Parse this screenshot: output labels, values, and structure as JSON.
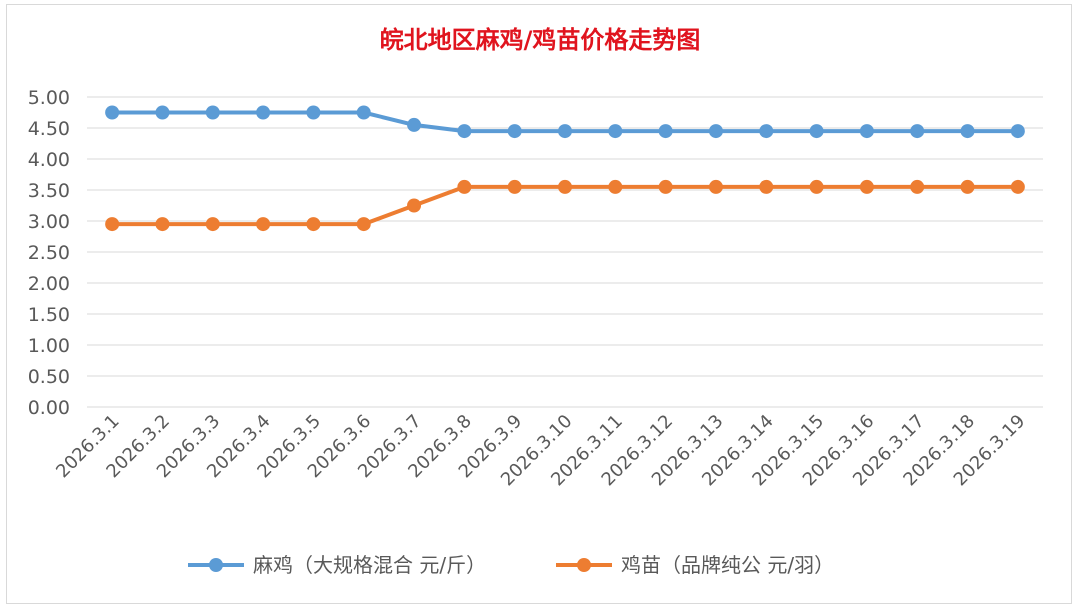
{
  "chart_data": {
    "type": "line",
    "title": "皖北地区麻鸡/鸡苗价格走势图",
    "xlabel": "",
    "ylabel": "",
    "ylim": [
      0,
      5
    ],
    "yticks": [
      "0.00",
      "0.50",
      "1.00",
      "1.50",
      "2.00",
      "2.50",
      "3.00",
      "3.50",
      "4.00",
      "4.50",
      "5.00"
    ],
    "grid": true,
    "legend_position": "bottom",
    "categories": [
      "2026.3.1",
      "2026.3.2",
      "2026.3.3",
      "2026.3.4",
      "2026.3.5",
      "2026.3.6",
      "2026.3.7",
      "2026.3.8",
      "2026.3.9",
      "2026.3.10",
      "2026.3.11",
      "2026.3.12",
      "2026.3.13",
      "2026.3.14",
      "2026.3.15",
      "2026.3.16",
      "2026.3.17",
      "2026.3.18",
      "2026.3.19"
    ],
    "series": [
      {
        "name": "麻鸡（大规格混合 元/斤）",
        "color": "#5b9bd5",
        "values": [
          4.75,
          4.75,
          4.75,
          4.75,
          4.75,
          4.75,
          4.55,
          4.45,
          4.45,
          4.45,
          4.45,
          4.45,
          4.45,
          4.45,
          4.45,
          4.45,
          4.45,
          4.45,
          4.45
        ]
      },
      {
        "name": "鸡苗（品牌纯公 元/羽）",
        "color": "#ed7d31",
        "values": [
          2.95,
          2.95,
          2.95,
          2.95,
          2.95,
          2.95,
          3.25,
          3.55,
          3.55,
          3.55,
          3.55,
          3.55,
          3.55,
          3.55,
          3.55,
          3.55,
          3.55,
          3.55,
          3.55
        ]
      }
    ]
  }
}
